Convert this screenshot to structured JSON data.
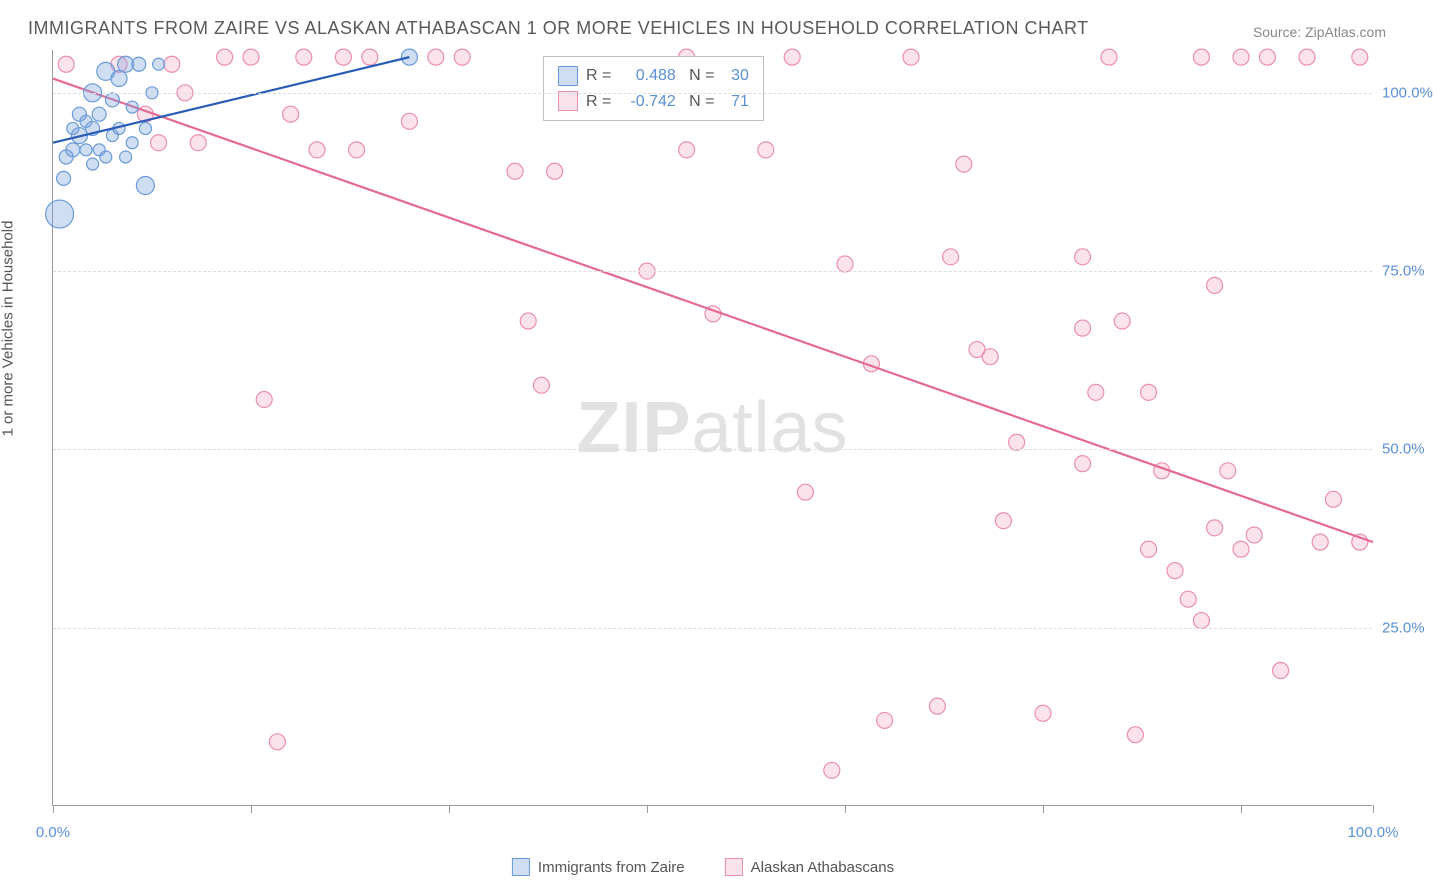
{
  "title": "IMMIGRANTS FROM ZAIRE VS ALASKAN ATHABASCAN 1 OR MORE VEHICLES IN HOUSEHOLD CORRELATION CHART",
  "source": "Source: ZipAtlas.com",
  "y_axis_label": "1 or more Vehicles in Household",
  "watermark": {
    "bold": "ZIP",
    "rest": "atlas"
  },
  "colors": {
    "blue_fill": "rgba(120,160,220,0.35)",
    "blue_stroke": "#6a9bd8",
    "blue_line": "#2a5bb5",
    "pink_fill": "rgba(245,160,190,0.30)",
    "pink_stroke": "#e98fb0",
    "pink_line": "#e36a93",
    "grid": "#dddddd",
    "axis": "#999999",
    "tick_text": "#5b8fd6",
    "text": "#5a5a5a"
  },
  "chart": {
    "type": "scatter",
    "xlim": [
      0,
      100
    ],
    "ylim": [
      0,
      106
    ],
    "y_ticks": [
      25,
      50,
      75,
      100
    ],
    "y_tick_labels": [
      "25.0%",
      "50.0%",
      "75.0%",
      "100.0%"
    ],
    "x_ticks": [
      0,
      15,
      30,
      45,
      60,
      75,
      90,
      100
    ],
    "x_tick_labels": {
      "0": "0.0%",
      "100": "100.0%"
    },
    "series": [
      {
        "name": "Immigrants from Zaire",
        "color_key": "blue",
        "trend": {
          "x1": 0,
          "y1": 93,
          "x2": 27,
          "y2": 105
        },
        "points": [
          {
            "x": 0.5,
            "y": 83,
            "r": 14
          },
          {
            "x": 1,
            "y": 91,
            "r": 7
          },
          {
            "x": 1.5,
            "y": 92,
            "r": 7
          },
          {
            "x": 2,
            "y": 94,
            "r": 8
          },
          {
            "x": 2,
            "y": 97,
            "r": 7
          },
          {
            "x": 2.5,
            "y": 92,
            "r": 6
          },
          {
            "x": 3,
            "y": 95,
            "r": 7
          },
          {
            "x": 3,
            "y": 100,
            "r": 9
          },
          {
            "x": 3.5,
            "y": 92,
            "r": 6
          },
          {
            "x": 3.5,
            "y": 97,
            "r": 7
          },
          {
            "x": 4,
            "y": 103,
            "r": 9
          },
          {
            "x": 4.5,
            "y": 94,
            "r": 6
          },
          {
            "x": 4.5,
            "y": 99,
            "r": 7
          },
          {
            "x": 5,
            "y": 102,
            "r": 8
          },
          {
            "x": 5,
            "y": 95,
            "r": 6
          },
          {
            "x": 5.5,
            "y": 104,
            "r": 8
          },
          {
            "x": 6,
            "y": 93,
            "r": 6
          },
          {
            "x": 6,
            "y": 98,
            "r": 6
          },
          {
            "x": 6.5,
            "y": 104,
            "r": 7
          },
          {
            "x": 7,
            "y": 87,
            "r": 9
          },
          {
            "x": 7,
            "y": 95,
            "r": 6
          },
          {
            "x": 7.5,
            "y": 100,
            "r": 6
          },
          {
            "x": 8,
            "y": 104,
            "r": 6
          },
          {
            "x": 3,
            "y": 90,
            "r": 6
          },
          {
            "x": 4,
            "y": 91,
            "r": 6
          },
          {
            "x": 2.5,
            "y": 96,
            "r": 6
          },
          {
            "x": 1.5,
            "y": 95,
            "r": 6
          },
          {
            "x": 0.8,
            "y": 88,
            "r": 7
          },
          {
            "x": 5.5,
            "y": 91,
            "r": 6
          },
          {
            "x": 27,
            "y": 105,
            "r": 8
          }
        ]
      },
      {
        "name": "Alaskan Athabascans",
        "color_key": "pink",
        "trend": {
          "x1": 0,
          "y1": 102,
          "x2": 100,
          "y2": 37
        },
        "points": [
          {
            "x": 1,
            "y": 104,
            "r": 8
          },
          {
            "x": 5,
            "y": 104,
            "r": 8
          },
          {
            "x": 7,
            "y": 97,
            "r": 8
          },
          {
            "x": 8,
            "y": 93,
            "r": 8
          },
          {
            "x": 9,
            "y": 104,
            "r": 8
          },
          {
            "x": 10,
            "y": 100,
            "r": 8
          },
          {
            "x": 11,
            "y": 93,
            "r": 8
          },
          {
            "x": 13,
            "y": 105,
            "r": 8
          },
          {
            "x": 15,
            "y": 105,
            "r": 8
          },
          {
            "x": 16,
            "y": 57,
            "r": 8
          },
          {
            "x": 17,
            "y": 9,
            "r": 8
          },
          {
            "x": 18,
            "y": 97,
            "r": 8
          },
          {
            "x": 19,
            "y": 105,
            "r": 8
          },
          {
            "x": 20,
            "y": 92,
            "r": 8
          },
          {
            "x": 22,
            "y": 105,
            "r": 8
          },
          {
            "x": 23,
            "y": 92,
            "r": 8
          },
          {
            "x": 24,
            "y": 105,
            "r": 8
          },
          {
            "x": 27,
            "y": 96,
            "r": 8
          },
          {
            "x": 29,
            "y": 105,
            "r": 8
          },
          {
            "x": 31,
            "y": 105,
            "r": 8
          },
          {
            "x": 35,
            "y": 89,
            "r": 8
          },
          {
            "x": 36,
            "y": 68,
            "r": 8
          },
          {
            "x": 37,
            "y": 59,
            "r": 8
          },
          {
            "x": 38,
            "y": 89,
            "r": 8
          },
          {
            "x": 45,
            "y": 75,
            "r": 8
          },
          {
            "x": 48,
            "y": 105,
            "r": 8
          },
          {
            "x": 48,
            "y": 92,
            "r": 8
          },
          {
            "x": 50,
            "y": 69,
            "r": 8
          },
          {
            "x": 54,
            "y": 92,
            "r": 8
          },
          {
            "x": 56,
            "y": 105,
            "r": 8
          },
          {
            "x": 57,
            "y": 44,
            "r": 8
          },
          {
            "x": 59,
            "y": 5,
            "r": 8
          },
          {
            "x": 60,
            "y": 76,
            "r": 8
          },
          {
            "x": 62,
            "y": 62,
            "r": 8
          },
          {
            "x": 63,
            "y": 12,
            "r": 8
          },
          {
            "x": 65,
            "y": 105,
            "r": 8
          },
          {
            "x": 67,
            "y": 14,
            "r": 8
          },
          {
            "x": 68,
            "y": 77,
            "r": 8
          },
          {
            "x": 69,
            "y": 90,
            "r": 8
          },
          {
            "x": 70,
            "y": 64,
            "r": 8
          },
          {
            "x": 71,
            "y": 63,
            "r": 8
          },
          {
            "x": 73,
            "y": 51,
            "r": 8
          },
          {
            "x": 75,
            "y": 13,
            "r": 8
          },
          {
            "x": 78,
            "y": 67,
            "r": 8
          },
          {
            "x": 78,
            "y": 77,
            "r": 8
          },
          {
            "x": 79,
            "y": 58,
            "r": 8
          },
          {
            "x": 80,
            "y": 105,
            "r": 8
          },
          {
            "x": 81,
            "y": 68,
            "r": 8
          },
          {
            "x": 82,
            "y": 10,
            "r": 8
          },
          {
            "x": 83,
            "y": 36,
            "r": 8
          },
          {
            "x": 83,
            "y": 58,
            "r": 8
          },
          {
            "x": 84,
            "y": 47,
            "r": 8
          },
          {
            "x": 85,
            "y": 33,
            "r": 8
          },
          {
            "x": 86,
            "y": 29,
            "r": 8
          },
          {
            "x": 87,
            "y": 105,
            "r": 8
          },
          {
            "x": 87,
            "y": 26,
            "r": 8
          },
          {
            "x": 88,
            "y": 39,
            "r": 8
          },
          {
            "x": 88,
            "y": 73,
            "r": 8
          },
          {
            "x": 89,
            "y": 47,
            "r": 8
          },
          {
            "x": 90,
            "y": 105,
            "r": 8
          },
          {
            "x": 90,
            "y": 36,
            "r": 8
          },
          {
            "x": 91,
            "y": 38,
            "r": 8
          },
          {
            "x": 92,
            "y": 105,
            "r": 8
          },
          {
            "x": 93,
            "y": 19,
            "r": 8
          },
          {
            "x": 95,
            "y": 105,
            "r": 8
          },
          {
            "x": 96,
            "y": 37,
            "r": 8
          },
          {
            "x": 97,
            "y": 43,
            "r": 8
          },
          {
            "x": 99,
            "y": 105,
            "r": 8
          },
          {
            "x": 99,
            "y": 37,
            "r": 8
          },
          {
            "x": 78,
            "y": 48,
            "r": 8
          },
          {
            "x": 72,
            "y": 40,
            "r": 8
          }
        ]
      }
    ]
  },
  "stats_box": {
    "rows": [
      {
        "color_key": "blue",
        "r_label": "R =",
        "r_value": "0.488",
        "n_label": "N =",
        "n_value": "30"
      },
      {
        "color_key": "pink",
        "r_label": "R =",
        "r_value": "-0.742",
        "n_label": "N =",
        "n_value": "71"
      }
    ]
  },
  "legend": {
    "items": [
      {
        "label": "Immigrants from Zaire",
        "color_key": "blue"
      },
      {
        "label": "Alaskan Athabascans",
        "color_key": "pink"
      }
    ]
  }
}
